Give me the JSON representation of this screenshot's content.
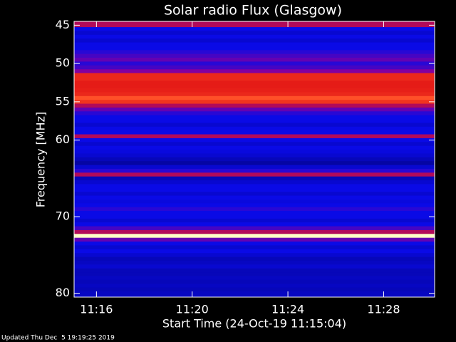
{
  "chart_data": {
    "type": "heatmap",
    "title": "Solar radio Flux (Glasgow)",
    "x_label": "Start Time (24-Oct-19 11:15:04)",
    "y_label": "Frequency [MHz]",
    "footer": "Updated Thu Dec  5 19:19:25 2019",
    "xlim": [
      15.0667,
      30.13
    ],
    "xticks": [
      {
        "value": 16,
        "label": "11:16"
      },
      {
        "value": 20,
        "label": "11:20"
      },
      {
        "value": 24,
        "label": "11:24"
      },
      {
        "value": 28,
        "label": "11:28"
      }
    ],
    "ylim": [
      44.5,
      80.5
    ],
    "y_inverted": true,
    "yticks": [
      45,
      50,
      55,
      60,
      70,
      80
    ],
    "y": [
      45,
      45.5,
      46,
      46.5,
      47,
      47.5,
      48,
      48.5,
      49,
      49.5,
      50,
      50.5,
      51,
      51.5,
      52,
      52.5,
      53,
      53.5,
      54,
      54.5,
      55,
      55.5,
      56,
      56.5,
      57,
      57.5,
      58,
      58.5,
      59,
      59.5,
      60,
      60.5,
      61,
      61.5,
      62,
      62.5,
      63,
      63.5,
      64,
      64.5,
      65,
      65.5,
      66,
      66.5,
      67,
      67.5,
      68,
      68.5,
      69,
      69.5,
      70,
      70.5,
      71,
      71.5,
      72,
      72.5,
      73,
      73.5,
      74,
      74.5,
      75,
      75.5,
      76,
      76.5,
      77,
      77.5,
      78,
      78.5,
      79,
      79.5,
      80
    ],
    "values": [
      0.6,
      0.3,
      0.25,
      0.3,
      0.25,
      0.3,
      0.3,
      0.35,
      0.4,
      0.45,
      0.35,
      0.4,
      0.5,
      0.75,
      0.75,
      0.72,
      0.72,
      0.73,
      0.75,
      0.85,
      0.78,
      0.6,
      0.45,
      0.35,
      0.3,
      0.3,
      0.25,
      0.3,
      0.3,
      0.6,
      0.3,
      0.25,
      0.3,
      0.28,
      0.25,
      0.2,
      0.15,
      0.25,
      0.35,
      0.6,
      0.2,
      0.25,
      0.3,
      0.3,
      0.25,
      0.3,
      0.28,
      0.3,
      0.35,
      0.3,
      0.3,
      0.25,
      0.3,
      0.4,
      0.6,
      1.0,
      0.45,
      0.3,
      0.25,
      0.3,
      0.25,
      0.2,
      0.22,
      0.25,
      0.2,
      0.2,
      0.22,
      0.2,
      0.22,
      0.2,
      0.22
    ]
  }
}
